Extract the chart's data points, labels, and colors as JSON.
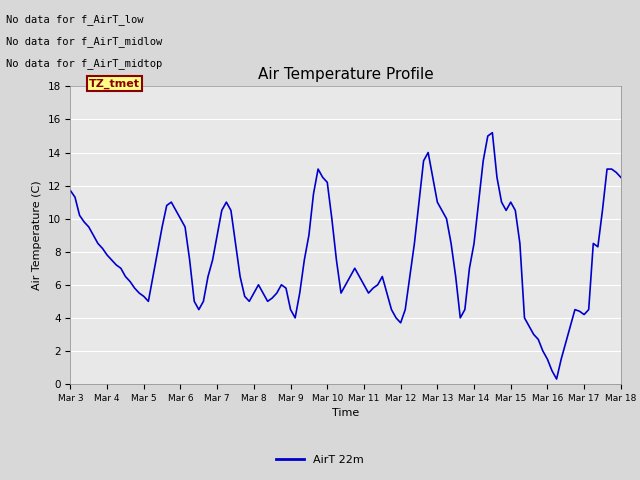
{
  "title": "Air Temperature Profile",
  "xlabel": "Time",
  "ylabel": "Air Temperature (C)",
  "ylim": [
    0,
    18
  ],
  "line_color": "#0000cc",
  "line_width": 1.2,
  "legend_label": "AirT 22m",
  "bg_color": "#e8e8e8",
  "annotations": [
    "No data for f_AirT_low",
    "No data for f_AirT_midlow",
    "No data for f_AirT_midtop"
  ],
  "tz_label": "TZ_tmet",
  "xtick_labels": [
    "Mar 3",
    "Mar 4",
    "Mar 5",
    "Mar 6",
    "Mar 7",
    "Mar 8",
    "Mar 9",
    "Mar 10",
    "Mar 11",
    "Mar 12",
    "Mar 13",
    "Mar 14",
    "Mar 15",
    "Mar 16",
    "Mar 17",
    "Mar 18"
  ],
  "ytick_labels": [
    "0",
    "2",
    "4",
    "6",
    "8",
    "10",
    "12",
    "14",
    "16",
    "18"
  ],
  "time_values": [
    0.0,
    0.125,
    0.25,
    0.375,
    0.5,
    0.625,
    0.75,
    0.875,
    1.0,
    1.125,
    1.25,
    1.375,
    1.5,
    1.625,
    1.75,
    1.875,
    2.0,
    2.125,
    2.25,
    2.375,
    2.5,
    2.625,
    2.75,
    2.875,
    3.0,
    3.125,
    3.25,
    3.375,
    3.5,
    3.625,
    3.75,
    3.875,
    4.0,
    4.125,
    4.25,
    4.375,
    4.5,
    4.625,
    4.75,
    4.875,
    5.0,
    5.125,
    5.25,
    5.375,
    5.5,
    5.625,
    5.75,
    5.875,
    6.0,
    6.125,
    6.25,
    6.375,
    6.5,
    6.625,
    6.75,
    6.875,
    7.0,
    7.125,
    7.25,
    7.375,
    7.5,
    7.625,
    7.75,
    7.875,
    8.0,
    8.125,
    8.25,
    8.375,
    8.5,
    8.625,
    8.75,
    8.875,
    9.0,
    9.125,
    9.25,
    9.375,
    9.5,
    9.625,
    9.75,
    9.875,
    10.0,
    10.125,
    10.25,
    10.375,
    10.5,
    10.625,
    10.75,
    10.875,
    11.0,
    11.125,
    11.25,
    11.375,
    11.5,
    11.625,
    11.75,
    11.875,
    12.0,
    12.125,
    12.25,
    12.375,
    12.5,
    12.625,
    12.75,
    12.875,
    13.0,
    13.125,
    13.25,
    13.375,
    13.5,
    13.625,
    13.75,
    13.875,
    14.0,
    14.125,
    14.25,
    14.375,
    14.5,
    14.625,
    14.75,
    14.875,
    15.0
  ],
  "temp_values": [
    11.7,
    11.3,
    10.2,
    9.8,
    9.5,
    9.0,
    8.5,
    8.2,
    7.8,
    7.5,
    7.2,
    7.0,
    6.5,
    6.2,
    5.8,
    5.5,
    5.3,
    5.0,
    6.5,
    8.0,
    9.5,
    10.8,
    11.0,
    10.5,
    10.0,
    9.5,
    7.5,
    5.0,
    4.5,
    5.0,
    6.5,
    7.5,
    9.0,
    10.5,
    11.0,
    10.5,
    8.5,
    6.5,
    5.3,
    5.0,
    5.5,
    6.0,
    5.5,
    5.0,
    5.2,
    5.5,
    6.0,
    5.8,
    4.5,
    4.0,
    5.5,
    7.5,
    9.0,
    11.5,
    13.0,
    12.5,
    12.2,
    10.0,
    7.5,
    5.5,
    6.0,
    6.5,
    7.0,
    6.5,
    6.0,
    5.5,
    5.8,
    6.0,
    6.5,
    5.5,
    4.5,
    4.0,
    3.7,
    4.5,
    6.5,
    8.5,
    11.0,
    13.5,
    14.0,
    12.5,
    11.0,
    10.5,
    10.0,
    8.5,
    6.5,
    4.0,
    4.5,
    7.0,
    8.5,
    11.0,
    13.5,
    15.0,
    15.2,
    12.5,
    11.0,
    10.5,
    11.0,
    10.5,
    8.5,
    4.0,
    3.5,
    3.0,
    2.7,
    2.0,
    1.5,
    0.8,
    0.3,
    1.5,
    2.5,
    3.5,
    4.5,
    4.4,
    4.2,
    4.5,
    8.5,
    8.3,
    10.5,
    13.0,
    13.0,
    12.8,
    12.5
  ]
}
